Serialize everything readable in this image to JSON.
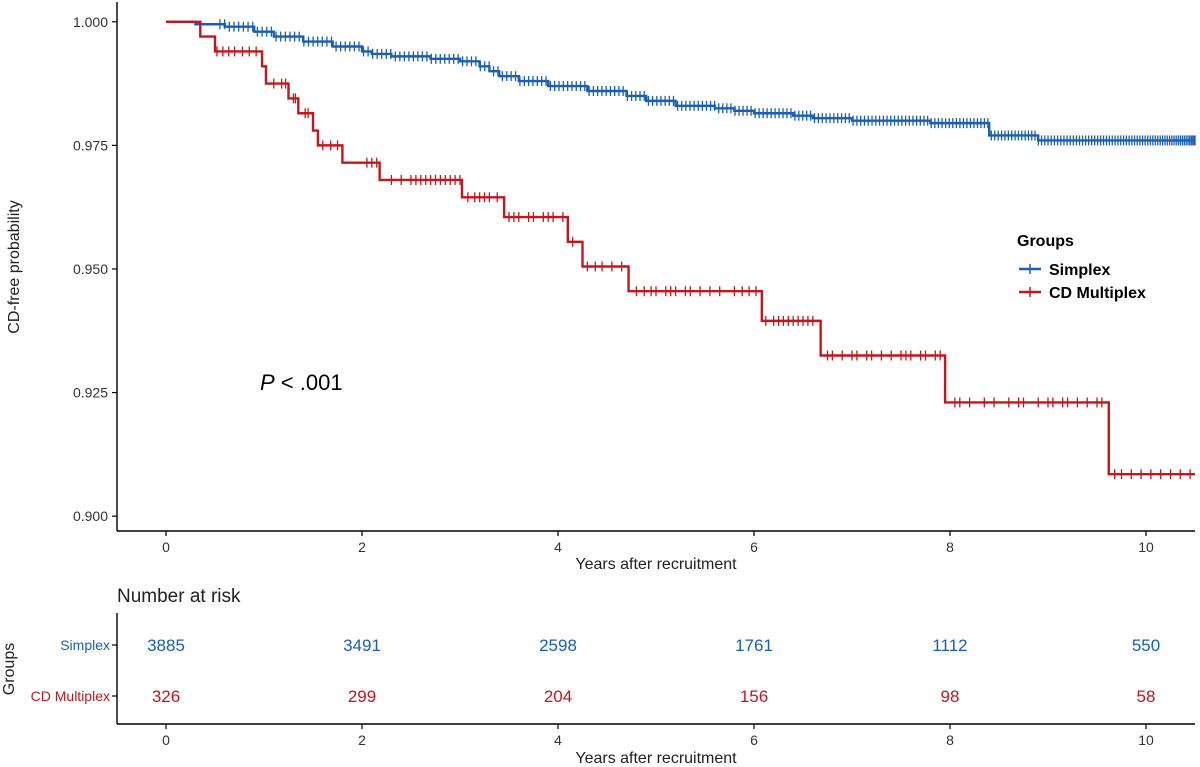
{
  "chart_data": [
    {
      "type": "line",
      "subtype": "kaplan-meier",
      "title": "",
      "xlabel": "Years after recruitment",
      "ylabel": "CD-free probability",
      "xlim": [
        -0.5,
        10.5
      ],
      "ylim": [
        0.897,
        1.004
      ],
      "x_ticks": [
        0,
        2,
        4,
        6,
        8,
        10
      ],
      "y_ticks": [
        0.9,
        0.925,
        0.95,
        0.975,
        1.0
      ],
      "y_tick_labels": [
        "0.900",
        "0.925",
        "0.950",
        "0.975",
        "1.000"
      ],
      "grid": false,
      "legend": {
        "title": "Groups",
        "placement": "right"
      },
      "annotation": {
        "prefix": "P",
        "text": " < .001"
      },
      "series": [
        {
          "name": "Simplex",
          "color": "#1a5fb4",
          "steps": [
            [
              0,
              1.0
            ],
            [
              0.3,
              0.9995
            ],
            [
              0.6,
              0.999
            ],
            [
              0.9,
              0.998
            ],
            [
              1.1,
              0.997
            ],
            [
              1.4,
              0.996
            ],
            [
              1.7,
              0.995
            ],
            [
              2.0,
              0.994
            ],
            [
              2.1,
              0.9935
            ],
            [
              2.3,
              0.993
            ],
            [
              2.7,
              0.9925
            ],
            [
              3.0,
              0.992
            ],
            [
              3.2,
              0.991
            ],
            [
              3.3,
              0.99
            ],
            [
              3.4,
              0.989
            ],
            [
              3.6,
              0.988
            ],
            [
              3.9,
              0.987
            ],
            [
              4.3,
              0.986
            ],
            [
              4.7,
              0.985
            ],
            [
              4.9,
              0.984
            ],
            [
              5.2,
              0.983
            ],
            [
              5.6,
              0.9825
            ],
            [
              5.8,
              0.982
            ],
            [
              6.0,
              0.9815
            ],
            [
              6.4,
              0.981
            ],
            [
              6.6,
              0.9805
            ],
            [
              7.0,
              0.98
            ],
            [
              7.8,
              0.9795
            ],
            [
              8.4,
              0.977
            ],
            [
              8.9,
              0.976
            ],
            [
              10.5,
              0.976
            ]
          ],
          "censor_count": 260
        },
        {
          "name": "CD Multiplex",
          "color": "#c4161c",
          "steps": [
            [
              0,
              1.0
            ],
            [
              0.35,
              0.997
            ],
            [
              0.5,
              0.994
            ],
            [
              0.98,
              0.991
            ],
            [
              1.02,
              0.9875
            ],
            [
              1.25,
              0.9845
            ],
            [
              1.35,
              0.9815
            ],
            [
              1.5,
              0.978
            ],
            [
              1.55,
              0.975
            ],
            [
              1.8,
              0.9715
            ],
            [
              2.18,
              0.968
            ],
            [
              3.02,
              0.9645
            ],
            [
              3.45,
              0.9605
            ],
            [
              4.1,
              0.9555
            ],
            [
              4.25,
              0.9505
            ],
            [
              4.72,
              0.9455
            ],
            [
              6.08,
              0.9395
            ],
            [
              6.68,
              0.9325
            ],
            [
              7.95,
              0.923
            ],
            [
              9.62,
              0.9085
            ],
            [
              10.5,
              0.9085
            ]
          ],
          "censor": [
            0.52,
            0.58,
            0.64,
            0.7,
            0.78,
            0.85,
            0.92,
            1.1,
            1.18,
            1.22,
            1.3,
            1.32,
            1.42,
            1.45,
            1.6,
            1.68,
            1.75,
            2.05,
            2.1,
            2.15,
            2.3,
            2.4,
            2.5,
            2.55,
            2.6,
            2.65,
            2.7,
            2.75,
            2.8,
            2.85,
            2.9,
            2.95,
            3.0,
            3.08,
            3.15,
            3.2,
            3.25,
            3.3,
            3.38,
            3.5,
            3.55,
            3.6,
            3.7,
            3.75,
            3.85,
            3.9,
            3.95,
            4.05,
            4.15,
            4.3,
            4.38,
            4.45,
            4.55,
            4.65,
            4.8,
            4.88,
            4.95,
            5.0,
            5.1,
            5.15,
            5.2,
            5.3,
            5.35,
            5.45,
            5.55,
            5.65,
            5.8,
            5.88,
            5.95,
            6.02,
            6.12,
            6.2,
            6.25,
            6.3,
            6.35,
            6.4,
            6.45,
            6.5,
            6.55,
            6.6,
            6.75,
            6.8,
            6.9,
            7.0,
            7.05,
            7.15,
            7.2,
            7.3,
            7.4,
            7.5,
            7.55,
            7.6,
            7.7,
            7.75,
            7.85,
            7.9,
            8.05,
            8.1,
            8.2,
            8.35,
            8.45,
            8.6,
            8.7,
            8.75,
            8.9,
            9.0,
            9.05,
            9.15,
            9.2,
            9.3,
            9.4,
            9.5,
            9.55,
            9.68,
            9.75,
            9.85,
            9.95,
            10.05,
            10.15,
            10.25,
            10.35,
            10.45
          ]
        }
      ]
    },
    {
      "type": "table",
      "title": "Number at risk",
      "xlabel": "Years after recruitment",
      "ylabel": "Groups",
      "x_ticks": [
        0,
        2,
        4,
        6,
        8,
        10
      ],
      "rows": [
        {
          "name": "Simplex",
          "color": "#1a5fb4",
          "values": [
            "3885",
            "3491",
            "2598",
            "1761",
            "1112",
            "550"
          ]
        },
        {
          "name": "CD Multiplex",
          "color": "#c4161c",
          "values": [
            "326",
            "299",
            "204",
            "156",
            "98",
            "58"
          ]
        }
      ]
    }
  ]
}
